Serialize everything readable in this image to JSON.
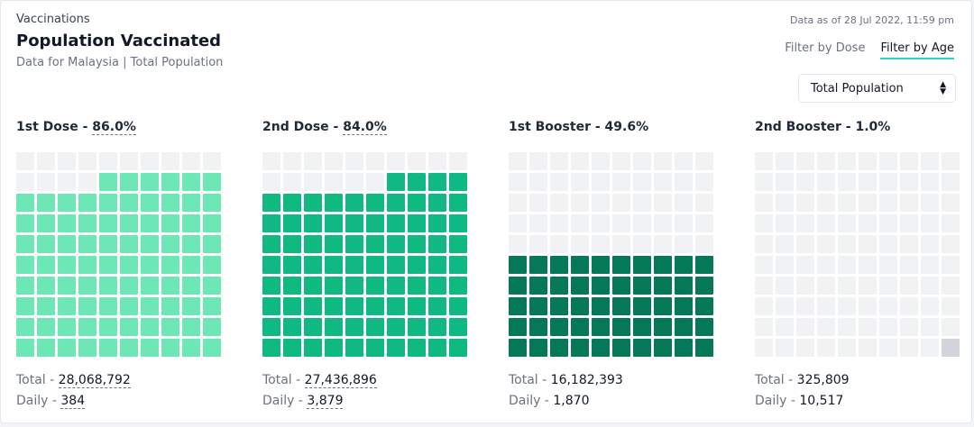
{
  "header": {
    "section": "Vaccinations",
    "title": "Population Vaccinated",
    "subtitle": "Data for Malaysia | Total Population",
    "as_of": "Data as of 28 Jul 2022, 11:59 pm"
  },
  "filters": {
    "by_dose": "Filter by Dose",
    "by_age": "Filter by Age",
    "active": "by_age"
  },
  "population_select": {
    "value": "Total Population"
  },
  "colors": {
    "empty": "#f1f2f4",
    "dose1": "#6ee7b7",
    "dose2": "#10b981",
    "booster1": "#047857",
    "booster2": "#d1d5db",
    "active_underline": "#2dd4bf"
  },
  "panels": [
    {
      "label": "1st Dose",
      "percent": "86.0%",
      "percent_value": 86.0,
      "total": "28,068,792",
      "daily": "384",
      "color_key": "dose1",
      "percent_underlined": true,
      "stats_underlined": true
    },
    {
      "label": "2nd Dose",
      "percent": "84.0%",
      "percent_value": 84.0,
      "total": "27,436,896",
      "daily": "3,879",
      "color_key": "dose2",
      "percent_underlined": true,
      "stats_underlined": true
    },
    {
      "label": "1st Booster",
      "percent": "49.6%",
      "percent_value": 49.6,
      "total": "16,182,393",
      "daily": "1,870",
      "color_key": "booster1",
      "percent_underlined": false,
      "stats_underlined": false
    },
    {
      "label": "2nd Booster",
      "percent": "1.0%",
      "percent_value": 1.0,
      "total": "325,809",
      "daily": "10,517",
      "color_key": "booster2",
      "percent_underlined": false,
      "stats_underlined": false
    }
  ],
  "labels": {
    "total": "Total",
    "daily": "Daily",
    "sep": " - "
  }
}
